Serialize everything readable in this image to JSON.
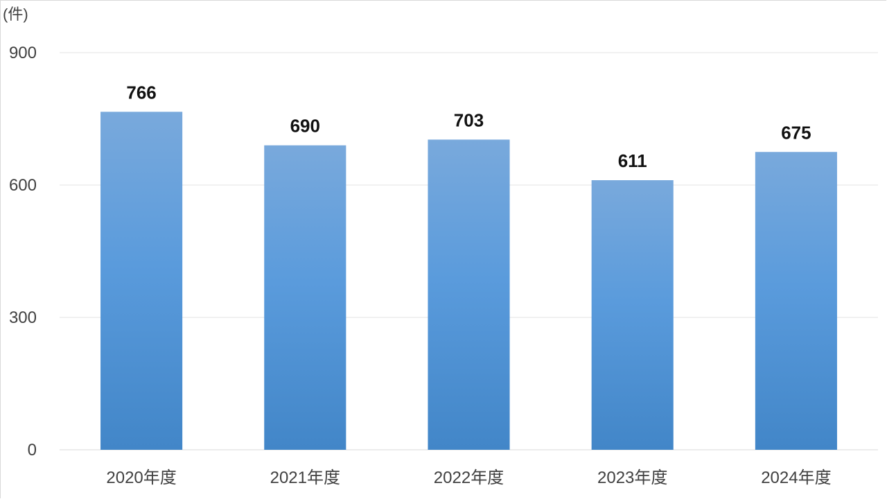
{
  "chart_data": {
    "type": "bar",
    "unit_label": "(件)",
    "categories": [
      "2020年度",
      "2021年度",
      "2022年度",
      "2023年度",
      "2024年度"
    ],
    "values": [
      766,
      690,
      703,
      611,
      675
    ],
    "data_labels": [
      "766",
      "690",
      "703",
      "611",
      "675"
    ],
    "ylim": [
      0,
      900
    ],
    "yticks": [
      0,
      300,
      600,
      900
    ],
    "ytick_labels": [
      "0",
      "300",
      "600",
      "900"
    ],
    "grid": true,
    "legend": "none",
    "colors": {
      "bar_top": "#79a9dc",
      "bar_mid": "#5a9bdc",
      "bar_bottom": "#4286c8"
    }
  }
}
